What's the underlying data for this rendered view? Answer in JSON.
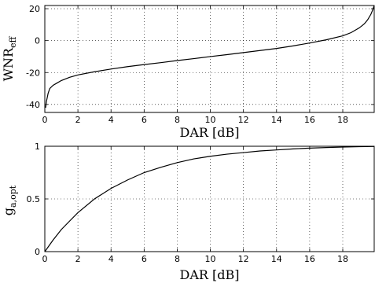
{
  "chart_data": [
    {
      "type": "line",
      "xlabel": "DAR [dB]",
      "ylabel": "WNR",
      "ylabel_sub": "eff",
      "xlim": [
        0,
        19.9
      ],
      "ylim": [
        -45,
        22
      ],
      "xticks": [
        0,
        2,
        4,
        6,
        8,
        10,
        12,
        14,
        16,
        18
      ],
      "yticks": [
        -40,
        -20,
        0,
        20
      ],
      "grid": true,
      "series": [
        {
          "x": [
            0.05,
            0.1,
            0.2,
            0.3,
            0.5,
            0.75,
            1,
            1.5,
            2,
            3,
            4,
            5,
            6,
            7,
            8,
            9,
            10,
            11,
            12,
            13,
            14,
            15,
            16,
            17,
            18,
            18.5,
            19,
            19.3,
            19.5,
            19.7,
            19.8,
            19.85,
            19.9
          ],
          "y": [
            -42,
            -38,
            -33,
            -30,
            -28,
            -26.5,
            -25,
            -23,
            -21.5,
            -19.5,
            -17.8,
            -16.3,
            -15,
            -13.8,
            -12.5,
            -11.3,
            -10,
            -8.8,
            -7.5,
            -6.2,
            -4.9,
            -3.3,
            -1.5,
            0.5,
            3.0,
            5.0,
            8.0,
            10.5,
            13.0,
            16.5,
            19.0,
            20.5,
            22.0
          ]
        }
      ]
    },
    {
      "type": "line",
      "xlabel": "DAR [dB]",
      "ylabel": "g",
      "ylabel_sub": "a,opt",
      "xlim": [
        0,
        19.9
      ],
      "ylim": [
        0,
        1
      ],
      "xticks": [
        0,
        2,
        4,
        6,
        8,
        10,
        12,
        14,
        16,
        18
      ],
      "yticks": [
        0,
        0.5,
        1
      ],
      "grid": true,
      "series": [
        {
          "x": [
            0,
            0.5,
            1,
            1.5,
            2,
            3,
            4,
            5,
            6,
            7,
            8,
            9,
            10,
            11,
            12,
            13,
            14,
            15,
            16,
            17,
            18,
            19,
            19.9
          ],
          "y": [
            0,
            0.11,
            0.21,
            0.29,
            0.37,
            0.5,
            0.6,
            0.68,
            0.75,
            0.8,
            0.845,
            0.88,
            0.905,
            0.925,
            0.94,
            0.955,
            0.965,
            0.975,
            0.982,
            0.988,
            0.992,
            0.996,
            0.998
          ]
        }
      ]
    }
  ]
}
